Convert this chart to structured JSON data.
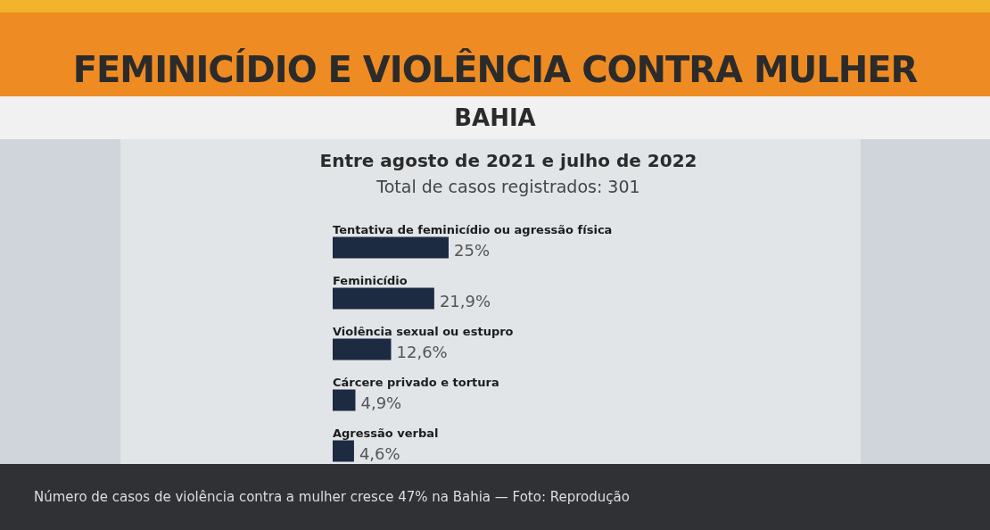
{
  "chart_data": {
    "type": "bar",
    "orientation": "horizontal",
    "title": "FEMINICÍDIO E VIOLÊNCIA CONTRA MULHER",
    "subtitle": "BAHIA",
    "annotations": [
      "Entre agosto de 2021 e julho de 2022",
      "Total de casos registrados: 301",
      "Número de casos de violência contra a mulher cresce 47% na Bahia — Foto: Reprodução"
    ],
    "categories": [
      "Tentativa de feminicídio ou agressão física",
      "Feminicídio",
      "Violência sexual ou estupro",
      "Cárcere privado e tortura",
      "Agressão verbal"
    ],
    "values": [
      25,
      21.9,
      12.6,
      4.9,
      4.6
    ],
    "value_labels": [
      "25%",
      "21,9%",
      "12,6%",
      "4,9%",
      "4,6%"
    ],
    "color": "#1c2b42"
  }
}
